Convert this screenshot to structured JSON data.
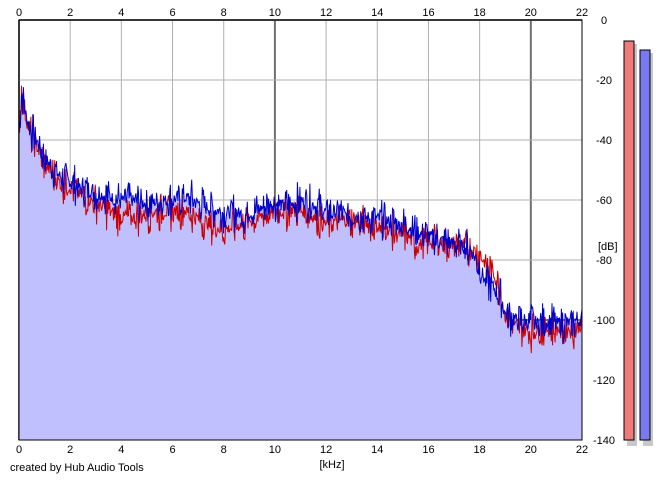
{
  "chart_data": {
    "type": "area",
    "xlabel": "[kHz]",
    "ylabel": "[dB]",
    "xlim": [
      0,
      22
    ],
    "ylim": [
      -140,
      0
    ],
    "x_ticks": [
      "0",
      "2",
      "4",
      "6",
      "8",
      "10",
      "12",
      "14",
      "16",
      "18",
      "20",
      "22"
    ],
    "y_ticks": [
      "0",
      "-20",
      "-40",
      "-60",
      "-80",
      "-100",
      "-120",
      "-140"
    ],
    "grid": true,
    "series": [
      {
        "color": "#0000cc",
        "fill": "#c0c0ff",
        "x": [
          0,
          0.1,
          0.2,
          0.3,
          0.5,
          0.8,
          1,
          1.3,
          1.6,
          2,
          2.4,
          2.8,
          3.2,
          3.6,
          4,
          4.4,
          4.8,
          5.2,
          5.6,
          6,
          6.4,
          6.8,
          7.2,
          7.6,
          8,
          8.4,
          8.8,
          9.2,
          9.6,
          10,
          10.4,
          10.8,
          11.2,
          11.6,
          12,
          12.4,
          12.8,
          13.2,
          13.6,
          14,
          14.4,
          14.8,
          15.2,
          15.6,
          16,
          16.4,
          16.8,
          17.2,
          17.6,
          18,
          18.2,
          18.5,
          18.8,
          19,
          19.5,
          20,
          20.5,
          21,
          21.5,
          22
        ],
        "y": [
          -38,
          -24,
          -28,
          -33,
          -37,
          -42,
          -46,
          -49,
          -52,
          -54,
          -56,
          -57,
          -58,
          -59,
          -60,
          -60,
          -61,
          -61,
          -60,
          -60,
          -59,
          -60,
          -62,
          -63,
          -64,
          -64,
          -65,
          -64,
          -62,
          -61,
          -62,
          -61,
          -60,
          -62,
          -64,
          -64,
          -65,
          -65,
          -66,
          -66,
          -67,
          -68,
          -69,
          -71,
          -72,
          -73,
          -74,
          -75,
          -76,
          -82,
          -87,
          -89,
          -92,
          -98,
          -100,
          -101,
          -101,
          -101,
          -101,
          -100
        ]
      },
      {
        "color": "#cc0000",
        "x": [
          0,
          0.1,
          0.2,
          0.3,
          0.5,
          0.8,
          1,
          1.3,
          1.6,
          2,
          2.4,
          2.8,
          3.2,
          3.6,
          4,
          4.4,
          4.8,
          5.2,
          5.6,
          6,
          6.4,
          6.8,
          7.2,
          7.6,
          8,
          8.4,
          8.8,
          9.2,
          9.6,
          10,
          10.4,
          10.8,
          11.2,
          11.6,
          12,
          12.4,
          12.8,
          13.2,
          13.6,
          14,
          14.4,
          14.8,
          15.2,
          15.6,
          16,
          16.4,
          16.8,
          17.2,
          17.6,
          18,
          18.2,
          18.5,
          18.8,
          19,
          19.5,
          20,
          20.5,
          21,
          21.5,
          22
        ],
        "y": [
          -36,
          -23,
          -29,
          -34,
          -39,
          -44,
          -48,
          -51,
          -54,
          -56,
          -58,
          -60,
          -62,
          -64,
          -66,
          -66,
          -65,
          -64,
          -64,
          -64,
          -63,
          -65,
          -67,
          -69,
          -70,
          -69,
          -68,
          -66,
          -65,
          -64,
          -64,
          -63,
          -64,
          -66,
          -68,
          -67,
          -67,
          -67,
          -68,
          -69,
          -70,
          -71,
          -72,
          -75,
          -74,
          -74,
          -75,
          -75,
          -76,
          -78,
          -81,
          -84,
          -89,
          -99,
          -102,
          -104,
          -103,
          -103,
          -103,
          -102
        ]
      }
    ],
    "level_meters": [
      {
        "color": "#f07a7a",
        "value": -7
      },
      {
        "color": "#7a7af0",
        "value": -10
      }
    ]
  },
  "credit": "created by Hub Audio Tools"
}
